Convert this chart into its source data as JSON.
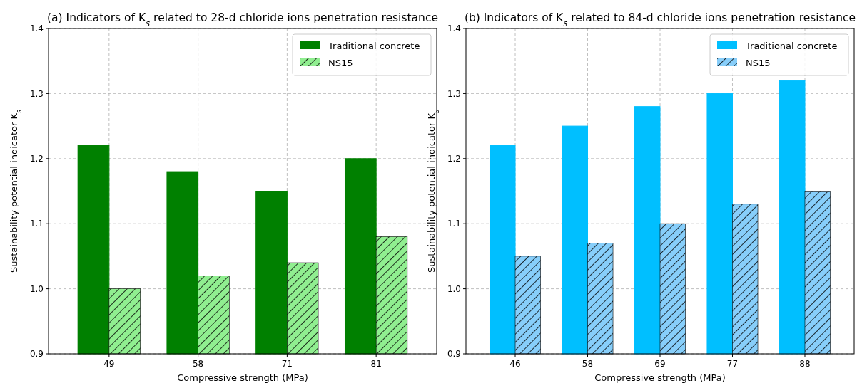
{
  "chart_data": [
    {
      "type": "bar",
      "title": "(a) Indicators of K$_{s}$ related to 28-d chloride ions penetration resistance",
      "xlabel": "Compressive strength (MPa)",
      "ylabel": "Sustainability potential indicator K$_{s}$",
      "categories": [
        "49",
        "58",
        "71",
        "81"
      ],
      "series": [
        {
          "name": "Traditional concrete",
          "color": "#008000",
          "values": [
            1.22,
            1.18,
            1.15,
            1.2
          ]
        },
        {
          "name": "NS15",
          "color": "#90ee90",
          "values": [
            1.0,
            1.02,
            1.04,
            1.08
          ]
        }
      ],
      "ylim": [
        0.9,
        1.4
      ],
      "yticks": [
        {
          "value": 0.9,
          "label": "0.9"
        },
        {
          "value": 1.0,
          "label": "1.0"
        },
        {
          "value": 1.1,
          "label": "1.1"
        },
        {
          "value": 1.2,
          "label": "1.2"
        },
        {
          "value": 1.3,
          "label": "1.3"
        },
        {
          "value": 1.4,
          "label": "1.4"
        }
      ],
      "grid": true,
      "legend": "top right"
    },
    {
      "type": "bar",
      "title": "(b) Indicators of K$_{s}$ related to 84-d chloride ions penetration resistance",
      "xlabel": "Compressive strength (MPa)",
      "ylabel": "Sustainability potential indicator K$_{s}$",
      "categories": [
        "46",
        "58",
        "69",
        "77",
        "88"
      ],
      "series": [
        {
          "name": "Traditional concrete",
          "color": "#00bfff",
          "values": [
            1.22,
            1.25,
            1.28,
            1.3,
            1.32
          ]
        },
        {
          "name": "NS15",
          "color": "#87cefa",
          "values": [
            1.05,
            1.07,
            1.1,
            1.13,
            1.15
          ]
        }
      ],
      "ylim": [
        0.9,
        1.4
      ],
      "yticks": [
        {
          "value": 0.9,
          "label": "0.9"
        },
        {
          "value": 1.0,
          "label": "1.0"
        },
        {
          "value": 1.1,
          "label": "1.1"
        },
        {
          "value": 1.2,
          "label": "1.2"
        },
        {
          "value": 1.3,
          "label": "1.3"
        },
        {
          "value": 1.4,
          "label": "1.4"
        }
      ],
      "grid": true,
      "legend": "top right"
    }
  ]
}
